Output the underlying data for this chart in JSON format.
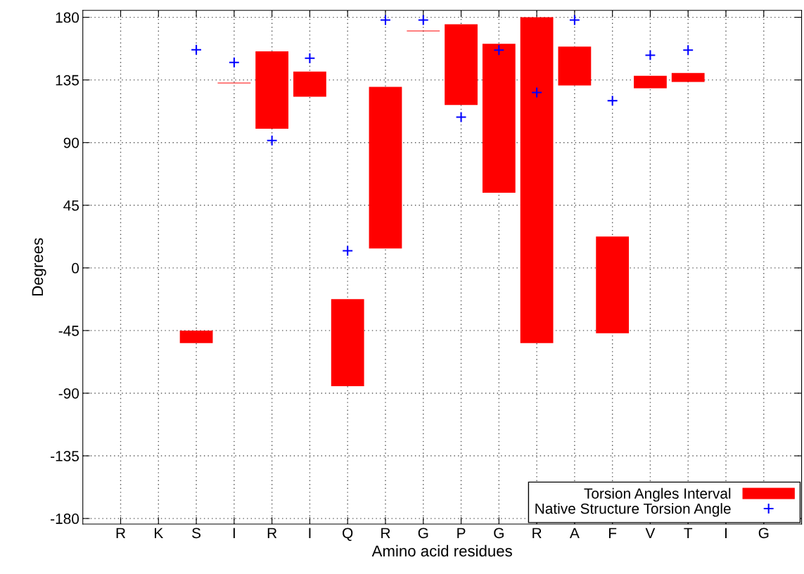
{
  "chart_data": {
    "type": "bar",
    "xlabel": "Amino acid residues",
    "ylabel": "Degrees",
    "categories": [
      "R",
      "K",
      "S",
      "I",
      "R",
      "I",
      "Q",
      "R",
      "G",
      "P",
      "G",
      "R",
      "A",
      "F",
      "V",
      "T",
      "I",
      "G"
    ],
    "series": [
      {
        "name": "Torsion Angles Interval",
        "color": "#ff0000",
        "base": [
          null,
          null,
          -54,
          132.5,
          100,
          123,
          -85,
          14,
          170,
          117,
          54,
          -54,
          131,
          -47,
          129,
          133.5,
          null,
          null
        ],
        "values": [
          null,
          null,
          9,
          0.5,
          55.5,
          18,
          62.5,
          116,
          0.5,
          58,
          107,
          234,
          28,
          69.5,
          9,
          6.5,
          null,
          null
        ]
      },
      {
        "name": "Native Structure Torsion Angle",
        "type": "scatter",
        "color": "#0000ff",
        "marker": "cross",
        "values": [
          null,
          null,
          156.7,
          147.6,
          91.5,
          150.6,
          12.3,
          178,
          178,
          108.3,
          156.4,
          126,
          178,
          120.1,
          152.8,
          156.4,
          null,
          null
        ]
      }
    ],
    "ylim": [
      -184,
      185
    ],
    "yticks": [
      -180,
      -135,
      -90,
      -45,
      0,
      45,
      90,
      135,
      180
    ],
    "grid": true,
    "legend": "bottom right"
  }
}
